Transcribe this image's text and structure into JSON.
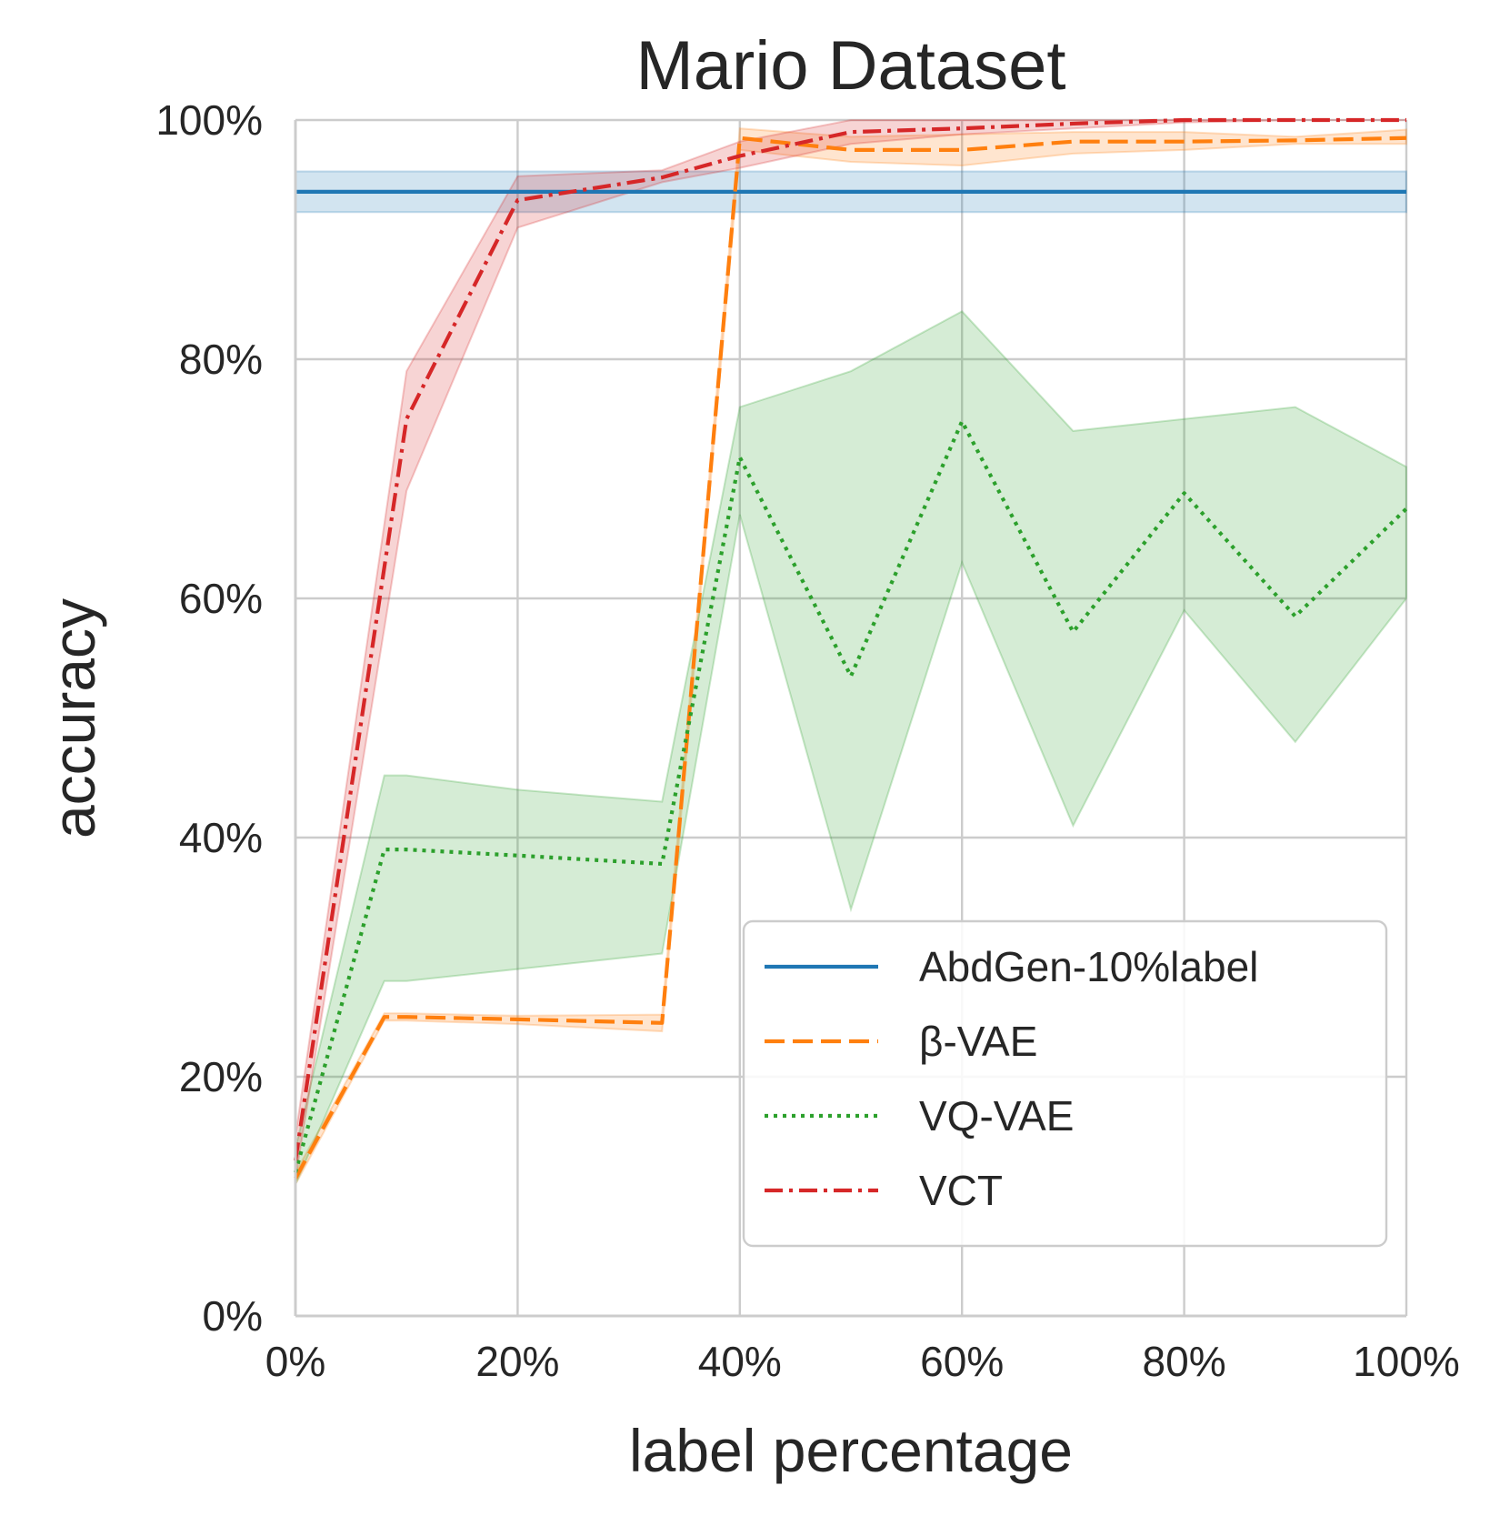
{
  "chart_data": {
    "type": "line",
    "title": "Mario Dataset",
    "xlabel": "label percentage",
    "ylabel": "accuracy",
    "xlim": [
      0,
      100
    ],
    "ylim": [
      0,
      100
    ],
    "xticks": [
      0,
      20,
      40,
      60,
      80,
      100
    ],
    "xtick_labels": [
      "0%",
      "20%",
      "40%",
      "60%",
      "80%",
      "100%"
    ],
    "yticks": [
      0,
      20,
      40,
      60,
      80,
      100
    ],
    "ytick_labels": [
      "0%",
      "20%",
      "40%",
      "60%",
      "80%",
      "100%"
    ],
    "grid": true,
    "legend_position": "lower-right",
    "series": [
      {
        "name": "AbdGen-10%label",
        "color": "#1f77b4",
        "style": "solid",
        "x": [
          0,
          100
        ],
        "y": [
          94,
          94
        ],
        "band_lower": [
          92.3,
          92.3
        ],
        "band_upper": [
          95.7,
          95.7
        ]
      },
      {
        "name": "β-VAE",
        "color": "#ff7f0e",
        "style": "dashed",
        "x": [
          0,
          8,
          10,
          20,
          33,
          40,
          50,
          60,
          70,
          80,
          90,
          100
        ],
        "y": [
          11.5,
          25,
          25,
          24.8,
          24.5,
          98.5,
          97.5,
          97.5,
          98.2,
          98.2,
          98.3,
          98.5
        ],
        "band_lower": [
          11,
          24.7,
          24.7,
          24.4,
          23.8,
          97.5,
          96.5,
          96.2,
          97.2,
          97.5,
          98,
          98
        ],
        "band_upper": [
          12,
          25.3,
          25.3,
          25.1,
          25.2,
          99.3,
          98.6,
          98.8,
          99,
          99,
          98.6,
          99.2
        ]
      },
      {
        "name": "VQ-VAE",
        "color": "#2ca02c",
        "style": "dotted",
        "x": [
          0,
          8,
          10,
          20,
          33,
          40,
          50,
          60,
          70,
          80,
          90,
          100
        ],
        "y": [
          12,
          39,
          39,
          38.5,
          37.8,
          71.8,
          53.5,
          74.8,
          57.2,
          68.8,
          58.5,
          67.5
        ],
        "band_lower": [
          11,
          28,
          28,
          29,
          30.3,
          67,
          34,
          63,
          41,
          59,
          48,
          60
        ],
        "band_upper": [
          14,
          45.2,
          45.2,
          44,
          43,
          76,
          79,
          84,
          74,
          75,
          76,
          71
        ]
      },
      {
        "name": "VCT",
        "color": "#d62728",
        "style": "dashdot",
        "x": [
          0,
          10,
          20,
          33,
          40,
          50,
          60,
          70,
          80,
          90,
          100
        ],
        "y": [
          13,
          75,
          93.3,
          95.2,
          97,
          99,
          99.3,
          99.7,
          100,
          100,
          100
        ],
        "band_lower": [
          11.5,
          69,
          91,
          94.8,
          96,
          98,
          98.8,
          99.3,
          99.8,
          100,
          100
        ],
        "band_upper": [
          15,
          79,
          95.3,
          95.8,
          98.2,
          100,
          100,
          100,
          100,
          100,
          100
        ]
      }
    ]
  }
}
